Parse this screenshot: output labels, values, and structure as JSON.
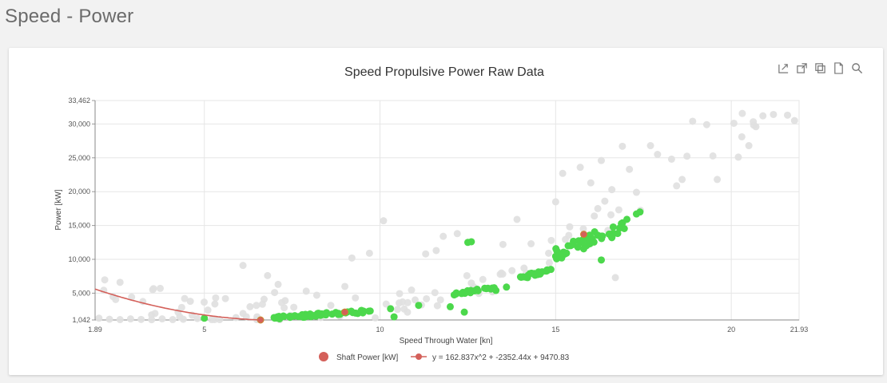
{
  "page": {
    "title": "Speed - Power"
  },
  "toolbar": {
    "icons": [
      "export-icon",
      "open-external-icon",
      "copy-icon",
      "document-icon",
      "zoom-icon"
    ]
  },
  "chart_data": {
    "type": "scatter",
    "title": "Speed Propulsive Power Raw Data",
    "xlabel": "Speed Through Water [kn]",
    "ylabel": "Power [kW]",
    "xlim": [
      1.89,
      21.93
    ],
    "ylim": [
      1042,
      33462
    ],
    "x_ticks": [
      1.89,
      5,
      10,
      15,
      20,
      21.93
    ],
    "x_tick_labels": [
      "1.89",
      "5",
      "10",
      "15",
      "20",
      "21.93"
    ],
    "y_ticks": [
      1042,
      5000,
      10000,
      15000,
      20000,
      25000,
      30000,
      33462
    ],
    "y_tick_labels": [
      "1,042",
      "5,000",
      "10,000",
      "15,000",
      "20,000",
      "25,000",
      "30,000",
      "33,462"
    ],
    "grid": true,
    "legend_position": "bottom-center",
    "colors": {
      "raw": "#e0e0e0",
      "filtered": "#4cd84c",
      "shaft_power": "#d4605a",
      "fit": "#d4605a"
    },
    "series": [
      {
        "name": "",
        "kind": "raw-points",
        "points": [
          [
            2.0,
            1300
          ],
          [
            2.3,
            1150
          ],
          [
            2.6,
            1100
          ],
          [
            2.9,
            1200
          ],
          [
            3.2,
            1120
          ],
          [
            3.5,
            1080
          ],
          [
            3.8,
            1200
          ],
          [
            4.1,
            1100
          ],
          [
            4.4,
            1150
          ],
          [
            4.8,
            1250
          ],
          [
            2.4,
            4500
          ],
          [
            2.6,
            6600
          ],
          [
            3.5,
            1800
          ],
          [
            4.3,
            1500
          ],
          [
            4.6,
            3800
          ],
          [
            5.1,
            2500
          ],
          [
            5.3,
            3400
          ],
          [
            5.6,
            4200
          ],
          [
            5.9,
            1400
          ],
          [
            6.1,
            2000
          ],
          [
            6.3,
            3000
          ],
          [
            6.5,
            1500
          ],
          [
            6.7,
            4100
          ],
          [
            7.0,
            5100
          ],
          [
            7.3,
            3900
          ],
          [
            7.5,
            1600
          ],
          [
            6.8,
            7600
          ],
          [
            6.1,
            9100
          ],
          [
            7.1,
            6300
          ],
          [
            7.9,
            5300
          ],
          [
            8.2,
            4700
          ],
          [
            8.6,
            3200
          ],
          [
            9.0,
            6000
          ],
          [
            9.2,
            10200
          ],
          [
            9.7,
            10900
          ],
          [
            10.1,
            15700
          ],
          [
            9.3,
            4300
          ],
          [
            10.5,
            2600
          ],
          [
            11.0,
            4000
          ],
          [
            11.3,
            10800
          ],
          [
            11.6,
            11300
          ],
          [
            11.8,
            13400
          ],
          [
            12.2,
            13800
          ],
          [
            12.6,
            6500
          ],
          [
            13.2,
            5200
          ],
          [
            13.5,
            12200
          ],
          [
            13.9,
            15900
          ],
          [
            14.3,
            12300
          ],
          [
            14.1,
            8700
          ],
          [
            14.8,
            10900
          ],
          [
            15.0,
            18500
          ],
          [
            15.2,
            22700
          ],
          [
            15.4,
            14800
          ],
          [
            15.7,
            23600
          ],
          [
            16.0,
            21300
          ],
          [
            16.1,
            16400
          ],
          [
            16.3,
            24600
          ],
          [
            16.4,
            18600
          ],
          [
            16.6,
            20300
          ],
          [
            16.9,
            26700
          ],
          [
            17.1,
            23300
          ],
          [
            17.3,
            19900
          ],
          [
            17.7,
            26800
          ],
          [
            17.9,
            25500
          ],
          [
            18.3,
            24800
          ],
          [
            18.6,
            21800
          ],
          [
            18.9,
            30400
          ],
          [
            19.3,
            29900
          ],
          [
            19.6,
            21800
          ],
          [
            20.2,
            25100
          ],
          [
            20.3,
            28100
          ],
          [
            20.7,
            29600
          ],
          [
            20.9,
            31200
          ],
          [
            21.2,
            31400
          ],
          [
            21.6,
            31300
          ],
          [
            21.8,
            30500
          ],
          [
            20.5,
            26800
          ],
          [
            16.7,
            7300
          ],
          [
            16.3,
            9900
          ],
          [
            16.2,
            17500
          ]
        ]
      },
      {
        "name": "",
        "kind": "filtered-points",
        "clusters": [
          {
            "x0": 6.9,
            "x1": 9.8,
            "y0": 1100,
            "y1": 2600,
            "n": 60
          },
          {
            "x0": 12.0,
            "x1": 13.3,
            "y0": 4600,
            "y1": 6000,
            "n": 22
          },
          {
            "x0": 14.0,
            "x1": 14.9,
            "y0": 7200,
            "y1": 8600,
            "n": 26
          },
          {
            "x0": 15.0,
            "x1": 17.1,
            "y0": 9500,
            "y1": 16500,
            "n": 50
          }
        ],
        "points": [
          [
            5.0,
            1300
          ],
          [
            10.3,
            2700
          ],
          [
            10.4,
            1500
          ],
          [
            11.1,
            3200
          ],
          [
            12.0,
            3000
          ],
          [
            12.4,
            2200
          ],
          [
            12.5,
            12500
          ],
          [
            12.6,
            12600
          ],
          [
            13.3,
            5400
          ],
          [
            13.6,
            5900
          ],
          [
            14.2,
            7300
          ],
          [
            16.3,
            9900
          ],
          [
            16.6,
            13200
          ],
          [
            17.3,
            16700
          ],
          [
            17.4,
            17000
          ]
        ]
      },
      {
        "name": "Shaft Power [kW]",
        "kind": "shaft-points",
        "points": [
          [
            6.6,
            1042
          ],
          [
            9.0,
            2200
          ],
          [
            15.8,
            13700
          ]
        ]
      },
      {
        "name": "y = 162.837x^2 + -2352.44x + 9470.83",
        "kind": "fit-curve",
        "coefficients": {
          "a": 162.837,
          "b": -2352.44,
          "c": 9470.83
        }
      }
    ]
  }
}
